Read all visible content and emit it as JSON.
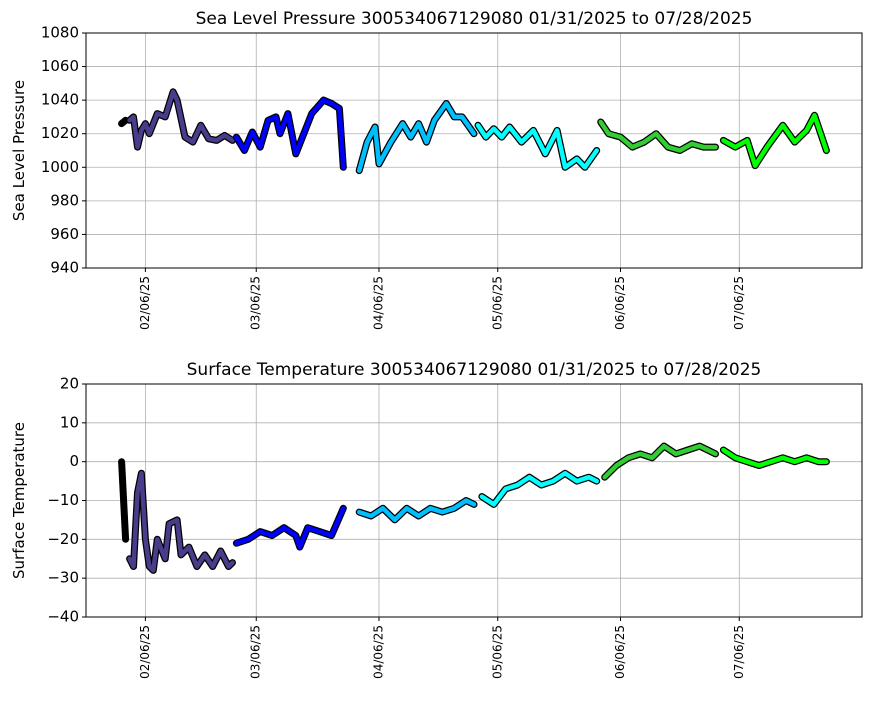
{
  "chart_data": [
    {
      "type": "line",
      "title": "Sea Level Pressure 300534067129080  01/31/2025 to 07/28/2025",
      "y_label": "Sea Level Pressure",
      "xlim": [
        "2025-01-22",
        "2025-08-06"
      ],
      "xticks": [
        {
          "value": "2025-02-06",
          "label": "02/06/25"
        },
        {
          "value": "2025-03-06",
          "label": "03/06/25"
        },
        {
          "value": "2025-04-06",
          "label": "04/06/25"
        },
        {
          "value": "2025-05-06",
          "label": "05/06/25"
        },
        {
          "value": "2025-06-06",
          "label": "06/06/25"
        },
        {
          "value": "2025-07-06",
          "label": "07/06/25"
        }
      ],
      "ylim": [
        940,
        1080
      ],
      "yticks": [
        940,
        960,
        980,
        1000,
        1020,
        1040,
        1060,
        1080
      ],
      "grid": true,
      "series": [
        {
          "color": "#000000",
          "x": [
            "2025-01-31",
            "2025-02-01"
          ],
          "values": [
            1026,
            1028
          ]
        },
        {
          "color": "#483d8b",
          "x": [
            "2025-02-02",
            "2025-02-03",
            "2025-02-04",
            "2025-02-05",
            "2025-02-06",
            "2025-02-07",
            "2025-02-09",
            "2025-02-11",
            "2025-02-13",
            "2025-02-14",
            "2025-02-16",
            "2025-02-18",
            "2025-02-20",
            "2025-02-22",
            "2025-02-24",
            "2025-02-26",
            "2025-02-28"
          ],
          "values": [
            1028,
            1030,
            1012,
            1022,
            1026,
            1020,
            1032,
            1030,
            1045,
            1040,
            1018,
            1015,
            1025,
            1017,
            1016,
            1019,
            1016
          ]
        },
        {
          "color": "#0000ff",
          "x": [
            "2025-03-01",
            "2025-03-03",
            "2025-03-05",
            "2025-03-07",
            "2025-03-09",
            "2025-03-11",
            "2025-03-12",
            "2025-03-14",
            "2025-03-16",
            "2025-03-18",
            "2025-03-20",
            "2025-03-23",
            "2025-03-25",
            "2025-03-27",
            "2025-03-28"
          ],
          "values": [
            1018,
            1010,
            1021,
            1012,
            1028,
            1030,
            1020,
            1032,
            1008,
            1020,
            1032,
            1040,
            1038,
            1035,
            1000
          ]
        },
        {
          "color": "#00bfff",
          "x": [
            "2025-04-01",
            "2025-04-03",
            "2025-04-05",
            "2025-04-06",
            "2025-04-09",
            "2025-04-12",
            "2025-04-14",
            "2025-04-16",
            "2025-04-18",
            "2025-04-20",
            "2025-04-23",
            "2025-04-25",
            "2025-04-27",
            "2025-04-30"
          ],
          "values": [
            998,
            1015,
            1024,
            1002,
            1015,
            1026,
            1018,
            1026,
            1015,
            1028,
            1038,
            1030,
            1030,
            1020
          ]
        },
        {
          "color": "#00ffff",
          "x": [
            "2025-05-01",
            "2025-05-03",
            "2025-05-05",
            "2025-05-07",
            "2025-05-09",
            "2025-05-12",
            "2025-05-15",
            "2025-05-18",
            "2025-05-21",
            "2025-05-23",
            "2025-05-26",
            "2025-05-28",
            "2025-05-31"
          ],
          "values": [
            1025,
            1018,
            1023,
            1018,
            1024,
            1015,
            1022,
            1008,
            1022,
            1000,
            1005,
            1000,
            1010
          ]
        },
        {
          "color": "#32cd32",
          "x": [
            "2025-06-01",
            "2025-06-03",
            "2025-06-06",
            "2025-06-09",
            "2025-06-12",
            "2025-06-15",
            "2025-06-18",
            "2025-06-21",
            "2025-06-24",
            "2025-06-27",
            "2025-06-30"
          ],
          "values": [
            1027,
            1020,
            1018,
            1012,
            1015,
            1020,
            1012,
            1010,
            1014,
            1012,
            1012
          ]
        },
        {
          "color": "#00ff00",
          "x": [
            "2025-07-02",
            "2025-07-05",
            "2025-07-08",
            "2025-07-10",
            "2025-07-13",
            "2025-07-17",
            "2025-07-20",
            "2025-07-23",
            "2025-07-25",
            "2025-07-28"
          ],
          "values": [
            1016,
            1012,
            1016,
            1001,
            1012,
            1025,
            1015,
            1022,
            1031,
            1010
          ]
        }
      ]
    },
    {
      "type": "line",
      "title": "Surface Temperature 300534067129080  01/31/2025 to 07/28/2025",
      "y_label": "Surface Temperature",
      "xlim": [
        "2025-01-22",
        "2025-08-06"
      ],
      "xticks": [
        {
          "value": "2025-02-06",
          "label": "02/06/25"
        },
        {
          "value": "2025-03-06",
          "label": "03/06/25"
        },
        {
          "value": "2025-04-06",
          "label": "04/06/25"
        },
        {
          "value": "2025-05-06",
          "label": "05/06/25"
        },
        {
          "value": "2025-06-06",
          "label": "06/06/25"
        },
        {
          "value": "2025-07-06",
          "label": "07/06/25"
        }
      ],
      "ylim": [
        -40,
        20
      ],
      "yticks": [
        {
          "value": -40,
          "label": "−40"
        },
        {
          "value": -30,
          "label": "−30"
        },
        {
          "value": -20,
          "label": "−20"
        },
        {
          "value": -10,
          "label": "−10"
        },
        0,
        10,
        20
      ],
      "grid": true,
      "series": [
        {
          "color": "#000000",
          "x": [
            "2025-01-31",
            "2025-02-01"
          ],
          "values": [
            0,
            -20
          ]
        },
        {
          "color": "#483d8b",
          "x": [
            "2025-02-02",
            "2025-02-03",
            "2025-02-04",
            "2025-02-05",
            "2025-02-06",
            "2025-02-07",
            "2025-02-08",
            "2025-02-09",
            "2025-02-11",
            "2025-02-12",
            "2025-02-14",
            "2025-02-15",
            "2025-02-17",
            "2025-02-19",
            "2025-02-21",
            "2025-02-23",
            "2025-02-25",
            "2025-02-27",
            "2025-02-28"
          ],
          "values": [
            -25,
            -27,
            -8,
            -3,
            -20,
            -27,
            -28,
            -20,
            -25,
            -16,
            -15,
            -24,
            -22,
            -27,
            -24,
            -27,
            -23,
            -27,
            -26
          ]
        },
        {
          "color": "#0000ff",
          "x": [
            "2025-03-01",
            "2025-03-04",
            "2025-03-07",
            "2025-03-10",
            "2025-03-13",
            "2025-03-16",
            "2025-03-17",
            "2025-03-19",
            "2025-03-22",
            "2025-03-25",
            "2025-03-28"
          ],
          "values": [
            -21,
            -20,
            -18,
            -19,
            -17,
            -19,
            -22,
            -17,
            -18,
            -19,
            -12
          ]
        },
        {
          "color": "#00bfff",
          "x": [
            "2025-04-01",
            "2025-04-04",
            "2025-04-07",
            "2025-04-10",
            "2025-04-13",
            "2025-04-16",
            "2025-04-19",
            "2025-04-22",
            "2025-04-25",
            "2025-04-28",
            "2025-04-30"
          ],
          "values": [
            -13,
            -14,
            -12,
            -15,
            -12,
            -14,
            -12,
            -13,
            -12,
            -10,
            -11
          ]
        },
        {
          "color": "#00ffff",
          "x": [
            "2025-05-02",
            "2025-05-05",
            "2025-05-08",
            "2025-05-11",
            "2025-05-14",
            "2025-05-17",
            "2025-05-20",
            "2025-05-23",
            "2025-05-26",
            "2025-05-29",
            "2025-05-31"
          ],
          "values": [
            -9,
            -11,
            -7,
            -6,
            -4,
            -6,
            -5,
            -3,
            -5,
            -4,
            -5
          ]
        },
        {
          "color": "#32cd32",
          "x": [
            "2025-06-02",
            "2025-06-05",
            "2025-06-08",
            "2025-06-11",
            "2025-06-14",
            "2025-06-17",
            "2025-06-20",
            "2025-06-23",
            "2025-06-26",
            "2025-06-30"
          ],
          "values": [
            -4,
            -1,
            1,
            2,
            1,
            4,
            2,
            3,
            4,
            2
          ]
        },
        {
          "color": "#00ff00",
          "x": [
            "2025-07-02",
            "2025-07-05",
            "2025-07-08",
            "2025-07-11",
            "2025-07-14",
            "2025-07-17",
            "2025-07-20",
            "2025-07-23",
            "2025-07-26",
            "2025-07-28"
          ],
          "values": [
            3,
            1,
            0,
            -1,
            0,
            1,
            0,
            1,
            0,
            0
          ]
        }
      ]
    }
  ]
}
